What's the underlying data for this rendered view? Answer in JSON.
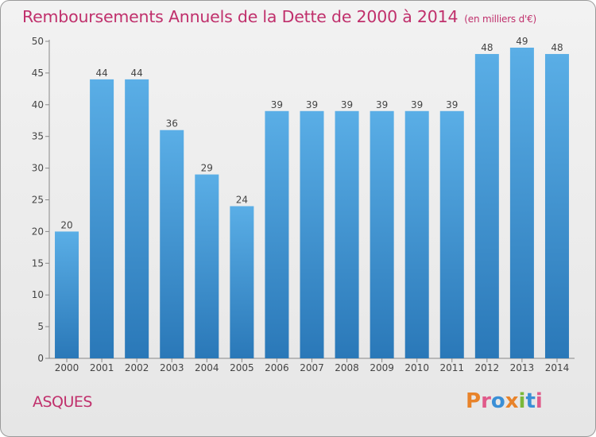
{
  "header": {
    "title": "Remboursements Annuels de la Dette de 2000 à 2014",
    "unit": "(en milliers d'€)"
  },
  "footer": {
    "commune": "ASQUES",
    "logo_text": "Proxiti"
  },
  "colors": {
    "title": "#c0306c",
    "bar_top": "#5aaee6",
    "bar_bottom": "#2a78b8",
    "logo_letters": [
      "#e8832a",
      "#e05a8a",
      "#3a8fd6",
      "#e8832a",
      "#7ab83a",
      "#3a8fd6",
      "#e05a8a"
    ]
  },
  "chart_data": {
    "type": "bar",
    "title": "Remboursements Annuels de la Dette de 2000 à 2014",
    "subtitle": "(en milliers d'€)",
    "xlabel": "",
    "ylabel": "",
    "categories": [
      "2000",
      "2001",
      "2002",
      "2003",
      "2004",
      "2005",
      "2006",
      "2007",
      "2008",
      "2009",
      "2010",
      "2011",
      "2012",
      "2013",
      "2014"
    ],
    "values": [
      20,
      44,
      44,
      36,
      29,
      24,
      39,
      39,
      39,
      39,
      39,
      39,
      48,
      49,
      48
    ],
    "ylim": [
      0,
      50
    ],
    "yticks": [
      0,
      5,
      10,
      15,
      20,
      25,
      30,
      35,
      40,
      45,
      50
    ],
    "grid": false,
    "legend": "none",
    "data_labels": true
  }
}
